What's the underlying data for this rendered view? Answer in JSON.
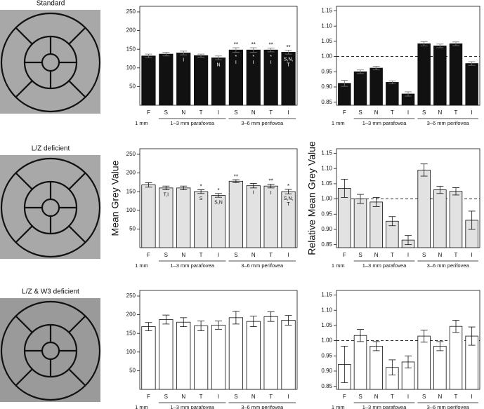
{
  "images": [
    {
      "title": "Standard"
    },
    {
      "title": "L/Z deficient"
    },
    {
      "title": "L/Z & W3 deficient"
    }
  ],
  "chart_data": [
    {
      "type": "bar",
      "categories": [
        "F",
        "S",
        "N",
        "T",
        "I",
        "S",
        "N",
        "T",
        "I"
      ],
      "groups": [
        "1 mm",
        "1–3 mm parafovea",
        "3–6 mm perifovea"
      ],
      "values": [
        132,
        137,
        140,
        133,
        127,
        148,
        148,
        148,
        142
      ],
      "errors": [
        5,
        5,
        5,
        4,
        5,
        6,
        6,
        5,
        5
      ],
      "annotations": [
        null,
        null,
        [
          "I"
        ],
        null,
        [
          "N"
        ],
        [
          "**",
          "*",
          "I"
        ],
        [
          "**",
          "*",
          "I"
        ],
        [
          "**",
          "*",
          "I"
        ],
        [
          "**",
          "S,N,",
          "T"
        ]
      ],
      "color": "#111111",
      "ylim": [
        0,
        265
      ],
      "yticks": [
        50,
        100,
        150,
        200,
        250
      ]
    },
    {
      "type": "bar",
      "categories": [
        "F",
        "S",
        "N",
        "T",
        "I",
        "S",
        "N",
        "T",
        "I"
      ],
      "groups": [
        "1 mm",
        "1–3 mm parafovea",
        "3–6 mm perifovea"
      ],
      "values": [
        0.912,
        0.95,
        0.962,
        0.915,
        0.877,
        1.042,
        1.035,
        1.042,
        0.977
      ],
      "errors": [
        0.01,
        0.006,
        0.006,
        0.005,
        0.007,
        0.007,
        0.006,
        0.006,
        0.006
      ],
      "color": "#111111",
      "reference_line": 1,
      "ylim": [
        0.84,
        1.165
      ],
      "yticks": [
        0.85,
        {
          "value": 0.9,
          "label": "0.90"
        },
        0.95,
        {
          "value": 1,
          "label": "1.00"
        },
        1.05,
        {
          "value": 1.1,
          "label": "1.10"
        },
        1.15
      ]
    },
    {
      "type": "bar",
      "y_label": "Mean Grey Value",
      "categories": [
        "F",
        "S",
        "N",
        "T",
        "I",
        "S",
        "N",
        "T",
        "I"
      ],
      "groups": [
        "1 mm",
        "1–3 mm parafovea",
        "3–6 mm perifovea"
      ],
      "values": [
        168,
        160,
        160,
        150,
        140,
        178,
        166,
        165,
        150
      ],
      "errors": [
        6,
        5,
        5,
        5,
        5,
        4,
        6,
        5,
        6
      ],
      "annotations": [
        null,
        [
          "T,I"
        ],
        null,
        [
          "*",
          "S"
        ],
        [
          "*",
          "S,N"
        ],
        [
          "**"
        ],
        [
          "I"
        ],
        [
          "**",
          "I"
        ],
        [
          "*",
          "S,N,",
          "T"
        ]
      ],
      "color": "#e2e2e2",
      "ylim": [
        0,
        265
      ],
      "yticks": [
        50,
        100,
        150,
        200,
        250
      ]
    },
    {
      "type": "bar",
      "y_label": "Relative Mean Grey Value",
      "categories": [
        "F",
        "S",
        "N",
        "T",
        "I",
        "S",
        "N",
        "T",
        "I"
      ],
      "groups": [
        "1 mm",
        "1–3 mm parafovea",
        "3–6 mm perifovea"
      ],
      "values": [
        1.035,
        1.0,
        0.99,
        0.927,
        0.865,
        1.095,
        1.03,
        1.025,
        0.93
      ],
      "errors": [
        0.03,
        0.015,
        0.015,
        0.015,
        0.015,
        0.02,
        0.012,
        0.012,
        0.03
      ],
      "color": "#e2e2e2",
      "reference_line": 1,
      "ylim": [
        0.84,
        1.165
      ],
      "yticks": [
        0.85,
        {
          "value": 0.9,
          "label": "0.90"
        },
        0.95,
        {
          "value": 1,
          "label": "1.00"
        },
        1.05,
        {
          "value": 1.1,
          "label": "1.10"
        },
        1.15
      ]
    },
    {
      "type": "bar",
      "categories": [
        "F",
        "S",
        "N",
        "T",
        "I",
        "S",
        "N",
        "T",
        "I"
      ],
      "groups": [
        "1 mm",
        "1–3 mm parafovea",
        "3–6 mm perifovea"
      ],
      "values": [
        168,
        187,
        180,
        170,
        172,
        192,
        182,
        195,
        185
      ],
      "errors": [
        11,
        12,
        12,
        13,
        11,
        17,
        14,
        13,
        13
      ],
      "color": "#ffffff",
      "ylim": [
        0,
        265
      ],
      "yticks": [
        50,
        100,
        150,
        200,
        250
      ]
    },
    {
      "type": "bar",
      "categories": [
        "F",
        "S",
        "N",
        "T",
        "I",
        "S",
        "N",
        "T",
        "I"
      ],
      "groups": [
        "1 mm",
        "1–3 mm parafovea",
        "3–6 mm perifovea"
      ],
      "values": [
        0.922,
        1.017,
        0.982,
        0.912,
        0.93,
        1.015,
        0.982,
        1.047,
        1.015
      ],
      "errors": [
        0.06,
        0.02,
        0.015,
        0.025,
        0.02,
        0.02,
        0.015,
        0.02,
        0.03
      ],
      "color": "#ffffff",
      "reference_line": 1,
      "ylim": [
        0.84,
        1.165
      ],
      "yticks": [
        0.85,
        {
          "value": 0.9,
          "label": "0.90"
        },
        0.95,
        {
          "value": 1,
          "label": "1.00"
        },
        1.05,
        {
          "value": 1.1,
          "label": "1.10"
        },
        1.15
      ]
    }
  ]
}
